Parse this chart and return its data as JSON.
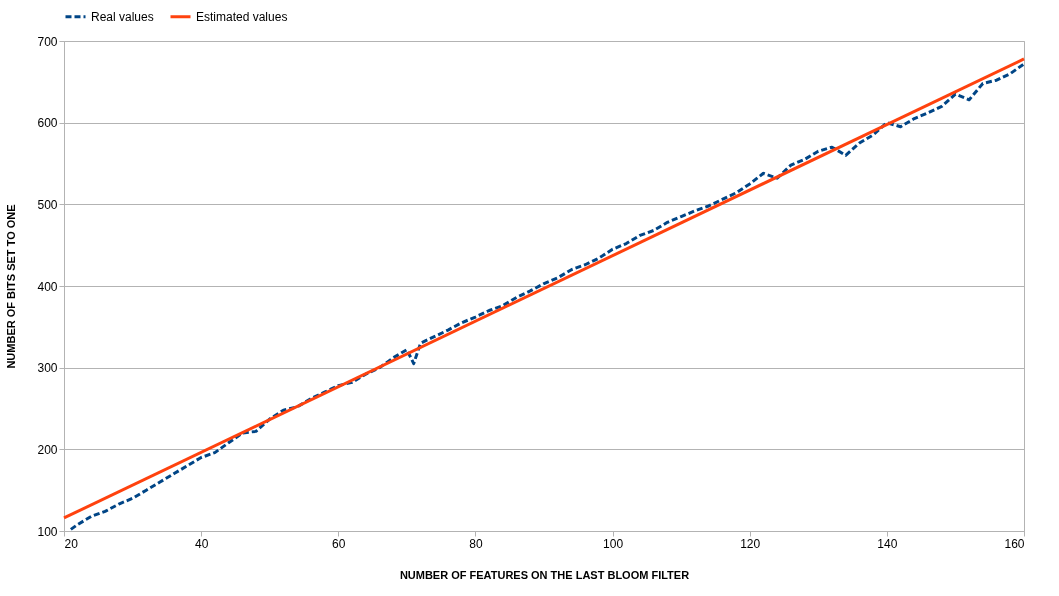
{
  "chart_data": {
    "type": "line",
    "xlabel": "NUMBER OF FEATURES ON THE LAST BLOOM FILTER",
    "ylabel": "NUMBER OF BITS SET TO ONE",
    "xlim": [
      20,
      160
    ],
    "xticks": [
      20,
      40,
      60,
      80,
      100,
      120,
      140,
      160
    ],
    "ylim": [
      100,
      700
    ],
    "yticks": [
      100,
      200,
      300,
      400,
      500,
      600,
      700
    ],
    "grid": "y",
    "legend": "top",
    "series": [
      {
        "name": "Real values",
        "color": "#004586",
        "line_style": "dashed",
        "x": [
          21,
          22,
          24,
          26,
          28,
          30,
          32,
          34,
          36,
          38,
          40,
          42,
          44,
          46,
          48,
          50,
          52,
          54,
          56,
          58,
          60,
          62,
          64,
          66,
          68,
          70,
          71,
          72,
          74,
          76,
          78,
          80,
          82,
          84,
          86,
          88,
          90,
          92,
          94,
          96,
          98,
          100,
          102,
          104,
          106,
          108,
          110,
          112,
          114,
          116,
          118,
          120,
          122,
          124,
          126,
          128,
          130,
          132,
          134,
          136,
          138,
          140,
          142,
          144,
          146,
          148,
          150,
          152,
          154,
          156,
          158,
          160
        ],
        "values": [
          102,
          108,
          118,
          124,
          133,
          140,
          150,
          160,
          170,
          180,
          190,
          196,
          208,
          220,
          222,
          237,
          248,
          252,
          262,
          270,
          278,
          282,
          292,
          300,
          312,
          322,
          305,
          330,
          338,
          346,
          355,
          362,
          370,
          376,
          386,
          394,
          403,
          410,
          420,
          426,
          434,
          445,
          452,
          462,
          468,
          478,
          485,
          492,
          498,
          506,
          514,
          525,
          538,
          532,
          548,
          555,
          565,
          570,
          560,
          575,
          585,
          600,
          595,
          605,
          612,
          620,
          635,
          628,
          648,
          652,
          660,
          672
        ]
      },
      {
        "name": "Estimated values",
        "color": "#ff420e",
        "line_style": "solid",
        "x": [
          20,
          160
        ],
        "values": [
          116,
          678
        ]
      }
    ]
  }
}
